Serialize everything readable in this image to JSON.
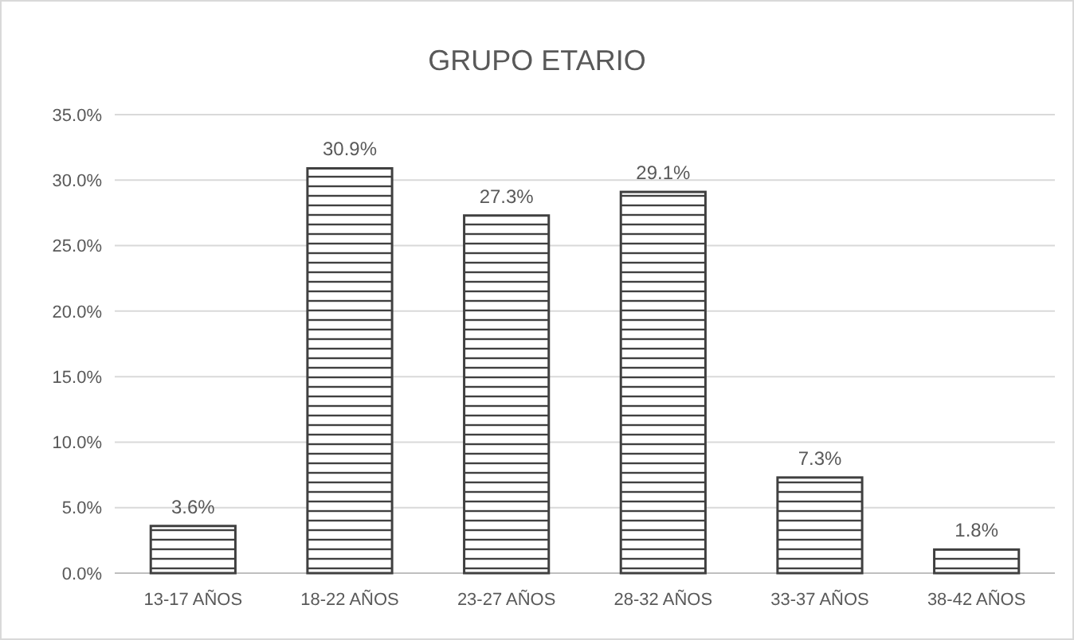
{
  "chart_data": {
    "type": "bar",
    "title": "GRUPO ETARIO",
    "categories": [
      "13-17 AÑOS",
      "18-22 AÑOS",
      "23-27 AÑOS",
      "28-32 AÑOS",
      "33-37 AÑOS",
      "38-42 AÑOS"
    ],
    "values": [
      3.6,
      30.9,
      27.3,
      29.1,
      7.3,
      1.8
    ],
    "value_labels": [
      "3.6%",
      "30.9%",
      "27.3%",
      "29.1%",
      "7.3%",
      "1.8%"
    ],
    "color": "#404040",
    "ylim": [
      0,
      35
    ],
    "yticks": [
      {
        "value": 0,
        "label": "0.0%"
      },
      {
        "value": 5,
        "label": "5.0%"
      },
      {
        "value": 10,
        "label": "10.0%"
      },
      {
        "value": 15,
        "label": "15.0%"
      },
      {
        "value": 20,
        "label": "20.0%"
      },
      {
        "value": 25,
        "label": "25.0%"
      },
      {
        "value": 30,
        "label": "30.0%"
      },
      {
        "value": 35,
        "label": "35.0%"
      }
    ],
    "grid": "y"
  }
}
